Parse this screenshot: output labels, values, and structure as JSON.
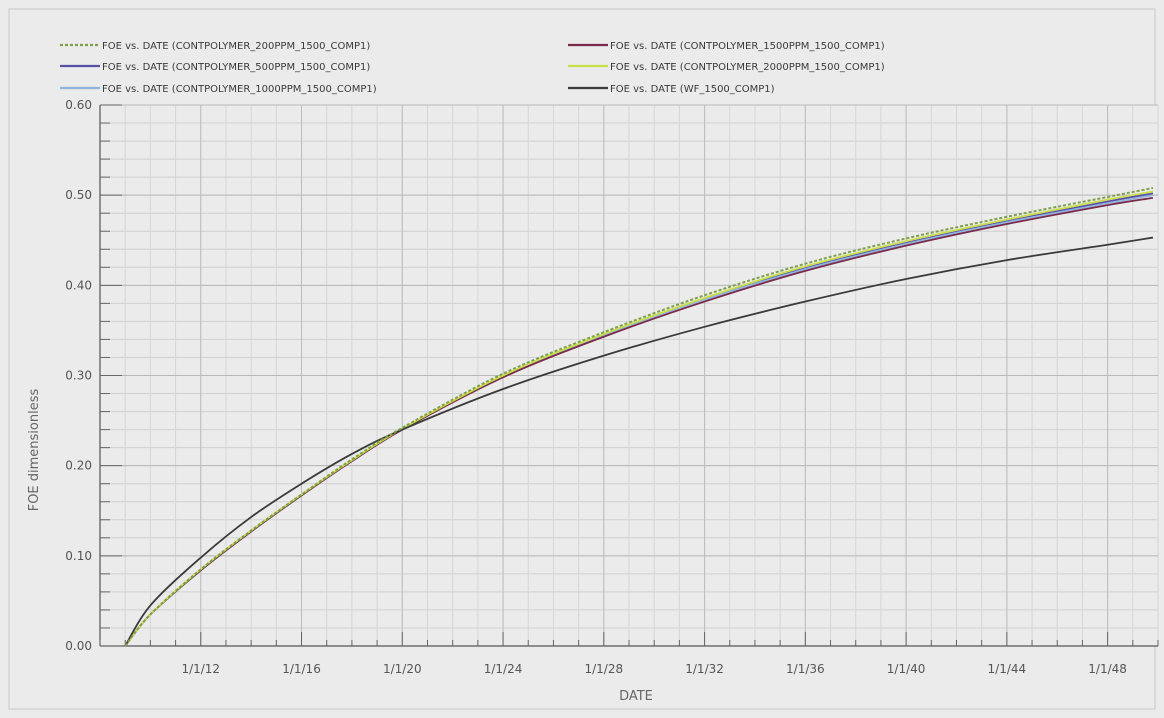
{
  "chart_data": {
    "type": "line",
    "xlabel": "DATE",
    "ylabel": "FOE  dimensionless",
    "xlim": [
      2008,
      2050
    ],
    "ylim": [
      0.0,
      0.6
    ],
    "grid": true,
    "legend_position": "top",
    "x_ticks": [
      {
        "value": 2012,
        "label": "1/1/12"
      },
      {
        "value": 2016,
        "label": "1/1/16"
      },
      {
        "value": 2020,
        "label": "1/1/20"
      },
      {
        "value": 2024,
        "label": "1/1/24"
      },
      {
        "value": 2028,
        "label": "1/1/28"
      },
      {
        "value": 2032,
        "label": "1/1/32"
      },
      {
        "value": 2036,
        "label": "1/1/36"
      },
      {
        "value": 2040,
        "label": "1/1/40"
      },
      {
        "value": 2044,
        "label": "1/1/44"
      },
      {
        "value": 2048,
        "label": "1/1/48"
      }
    ],
    "y_ticks": [
      {
        "value": 0.0,
        "label": "0.00"
      },
      {
        "value": 0.1,
        "label": "0.10"
      },
      {
        "value": 0.2,
        "label": "0.20"
      },
      {
        "value": 0.3,
        "label": "0.30"
      },
      {
        "value": 0.4,
        "label": "0.40"
      },
      {
        "value": 0.5,
        "label": "0.50"
      },
      {
        "value": 0.6,
        "label": "0.60"
      }
    ],
    "x": [
      2009,
      2010,
      2012,
      2014,
      2016,
      2018,
      2020,
      2024,
      2028,
      2032,
      2036,
      2040,
      2044,
      2048,
      2049.8
    ],
    "series": [
      {
        "name": "FOE vs. DATE (CONTPOLYMER_200PPM_1500_COMP1)",
        "color": "#7fa04a",
        "dashed": true,
        "values": [
          0.0,
          0.035,
          0.085,
          0.128,
          0.168,
          0.207,
          0.242,
          0.302,
          0.348,
          0.389,
          0.424,
          0.452,
          0.476,
          0.498,
          0.508
        ]
      },
      {
        "name": "FOE vs. DATE (CONTPOLYMER_500PPM_1500_COMP1)",
        "color": "#5a4fa6",
        "dashed": false,
        "values": [
          0.0,
          0.035,
          0.084,
          0.127,
          0.167,
          0.205,
          0.24,
          0.299,
          0.345,
          0.385,
          0.419,
          0.447,
          0.471,
          0.493,
          0.502
        ]
      },
      {
        "name": "FOE vs. DATE (CONTPOLYMER_1000PPM_1500_COMP1)",
        "color": "#8fb4e0",
        "dashed": false,
        "values": [
          0.0,
          0.035,
          0.084,
          0.127,
          0.167,
          0.205,
          0.24,
          0.299,
          0.345,
          0.384,
          0.418,
          0.446,
          0.47,
          0.491,
          0.5
        ]
      },
      {
        "name": "FOE vs. DATE (CONTPOLYMER_1500PPM_1500_COMP1)",
        "color": "#7a2a4a",
        "dashed": false,
        "values": [
          0.0,
          0.035,
          0.084,
          0.127,
          0.167,
          0.205,
          0.24,
          0.298,
          0.343,
          0.382,
          0.416,
          0.444,
          0.468,
          0.489,
          0.497
        ]
      },
      {
        "name": "FOE vs. DATE (CONTPOLYMER_2000PPM_1500_COMP1)",
        "color": "#c9df4a",
        "dashed": false,
        "values": [
          0.0,
          0.035,
          0.085,
          0.128,
          0.168,
          0.206,
          0.241,
          0.3,
          0.346,
          0.386,
          0.421,
          0.449,
          0.473,
          0.495,
          0.504
        ]
      },
      {
        "name": "FOE vs. DATE (WF_1500_COMP1)",
        "color": "#3a3a3a",
        "dashed": false,
        "values": [
          0.0,
          0.045,
          0.098,
          0.143,
          0.18,
          0.213,
          0.24,
          0.285,
          0.322,
          0.354,
          0.382,
          0.407,
          0.428,
          0.445,
          0.453
        ]
      }
    ]
  }
}
